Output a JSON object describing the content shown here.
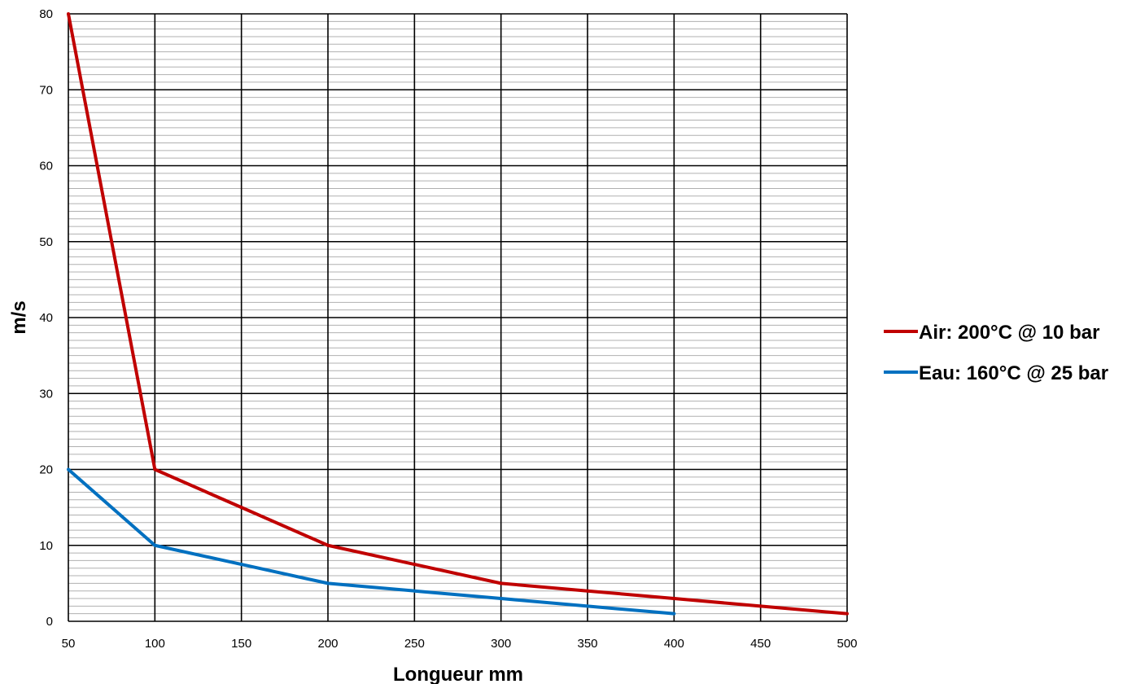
{
  "chart_data": {
    "type": "line",
    "title": "",
    "xlabel": "Longueur mm",
    "ylabel": "m/s",
    "xlim": [
      50,
      500
    ],
    "ylim": [
      0,
      80
    ],
    "x_ticks": [
      50,
      100,
      150,
      200,
      250,
      300,
      350,
      400,
      450,
      500
    ],
    "y_ticks": [
      0,
      10,
      20,
      30,
      40,
      50,
      60,
      70,
      80
    ],
    "y_minor_step": 1,
    "grid": "major and minor",
    "legend_position": "right",
    "series": [
      {
        "name": "Air: 200°C @ 10 bar",
        "color": "#c00000",
        "x": [
          50,
          100,
          150,
          200,
          250,
          300,
          350,
          400,
          450,
          500
        ],
        "values": [
          80,
          20,
          15,
          10,
          7.5,
          5,
          4,
          3,
          2,
          1
        ]
      },
      {
        "name": "Eau: 160°C @ 25 bar",
        "color": "#0070c0",
        "x": [
          50,
          100,
          150,
          200,
          250,
          300,
          350,
          400
        ],
        "values": [
          20,
          10,
          7.5,
          5,
          4,
          3,
          2,
          1
        ]
      }
    ]
  }
}
